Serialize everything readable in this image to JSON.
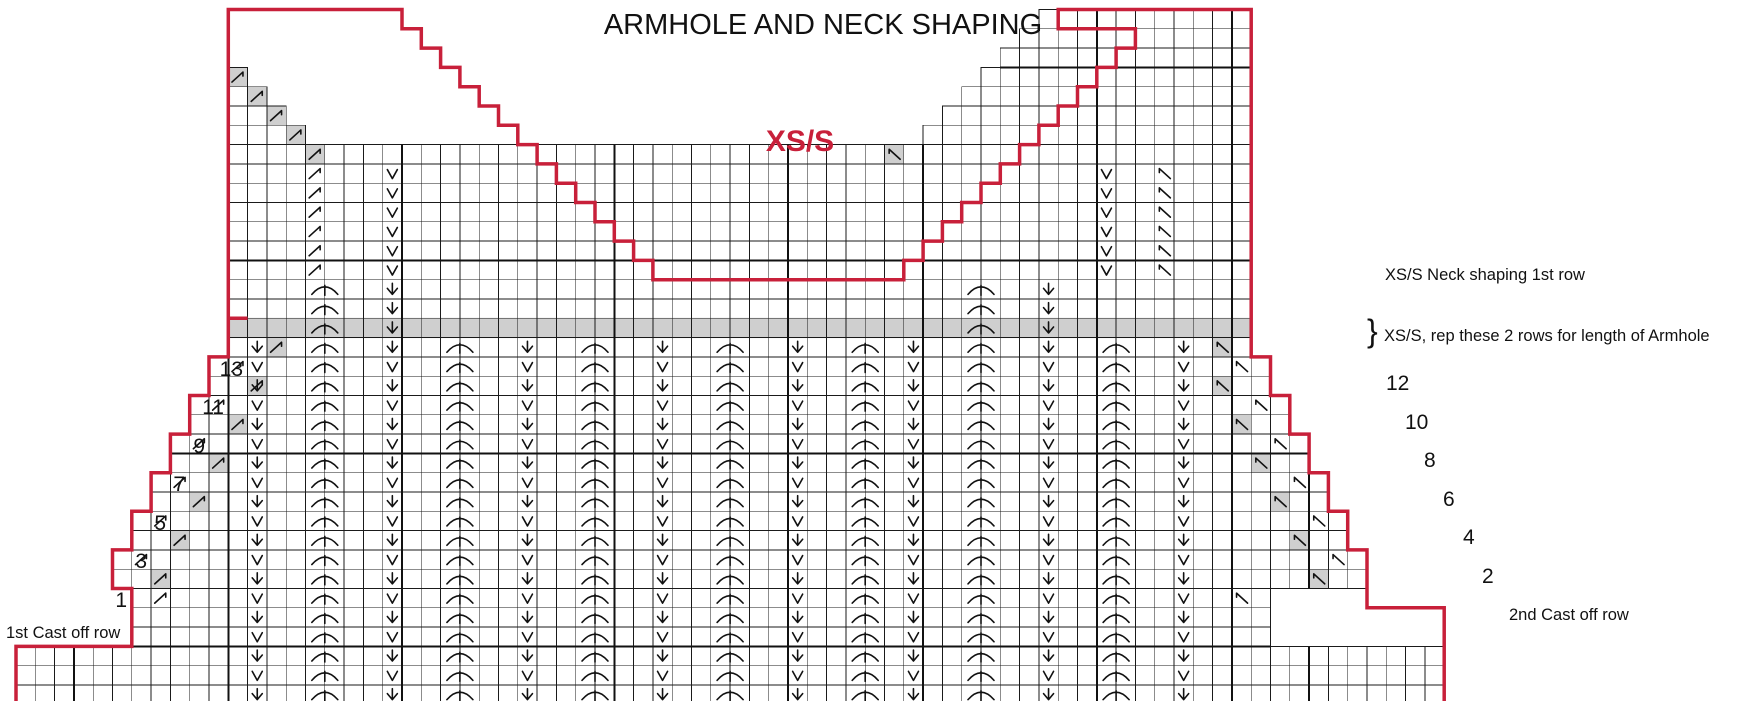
{
  "title": "ARMHOLE AND NECK SHAPING",
  "size_label": "XS/S",
  "annotations": {
    "neck_first_row": "XS/S Neck shaping 1st row",
    "brace": "}",
    "rep_rows": "XS/S, rep these 2 rows for length of Armhole",
    "first_cast_off": "1st Cast off row",
    "second_cast_off": "2nd Cast off row"
  },
  "left_row_numbers": [
    "13",
    "11",
    "9",
    "7",
    "5",
    "3",
    "1"
  ],
  "right_row_numbers": [
    "12",
    "10",
    "8",
    "6",
    "4",
    "2"
  ],
  "colors": {
    "outline": "#c8203a",
    "size_label": "#c8203a",
    "highlight": "#cfcfcf",
    "grid": "#1a1a1a",
    "background": "#ffffff"
  },
  "legend_symbols": [
    "left-slant-decrease",
    "right-slant-decrease",
    "slip-stitch-v",
    "double-decrease-arrow",
    "arc-increase"
  ]
}
